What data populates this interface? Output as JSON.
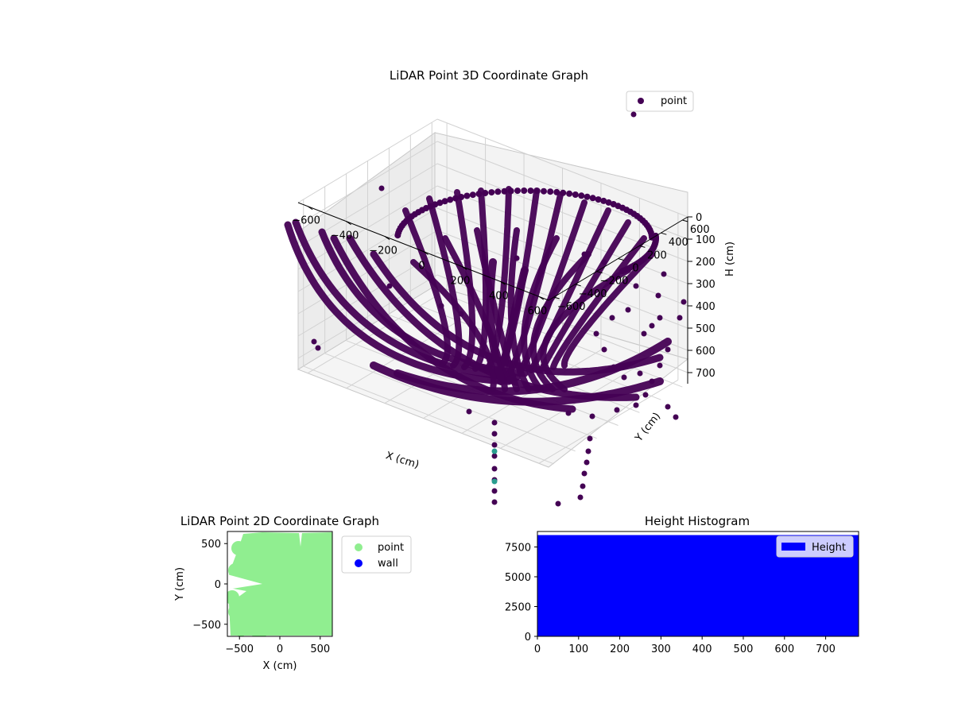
{
  "chart_data": [
    {
      "type": "scatter",
      "title": "LiDAR Point 3D Coordinate Graph",
      "projection": "3d",
      "xlabel": "X (cm)",
      "ylabel": "Y (cm)",
      "zlabel": "H (cm)",
      "xticks": [
        "−600",
        "−400",
        "−200",
        "0",
        "200",
        "400",
        "600"
      ],
      "yticks": [
        "−600",
        "−400",
        "−200",
        "0",
        "200",
        "400",
        "600"
      ],
      "zticks": [
        "0",
        "100",
        "200",
        "300",
        "400",
        "500",
        "600",
        "700"
      ],
      "xlim": [
        -650,
        650
      ],
      "ylim": [
        -650,
        650
      ],
      "zlim": [
        0,
        750
      ],
      "z_inverted": true,
      "legend": {
        "placement": "top-right",
        "entries": [
          "point"
        ]
      },
      "colormap": "viridis",
      "grid": true,
      "colors": {
        "point": "#440154",
        "dense": "#3a0f52",
        "outlier_teal": "#2a9d8f"
      }
    },
    {
      "type": "scatter",
      "title": "LiDAR Point 2D Coordinate Graph",
      "xlabel": "X (cm)",
      "ylabel": "Y (cm)",
      "xticks": [
        "−500",
        "0",
        "500"
      ],
      "yticks": [
        "500",
        "0",
        "−500"
      ],
      "xlim": [
        -650,
        650
      ],
      "ylim": [
        -650,
        650
      ],
      "series": [
        {
          "name": "point",
          "color": "#90ee90"
        },
        {
          "name": "wall",
          "color": "#0000ff"
        }
      ],
      "legend": {
        "placement": "outside-right"
      }
    },
    {
      "type": "bar",
      "title": "Height Histogram",
      "xticks": [
        "0",
        "100",
        "200",
        "300",
        "400",
        "500",
        "600",
        "700"
      ],
      "yticks": [
        "0",
        "2500",
        "5000",
        "7500"
      ],
      "xlim": [
        0,
        780
      ],
      "ylim": [
        0,
        8800
      ],
      "bin_value": 8500,
      "series": [
        {
          "name": "Height",
          "color": "#0000ff"
        }
      ],
      "legend": {
        "placement": "top-right"
      }
    }
  ]
}
